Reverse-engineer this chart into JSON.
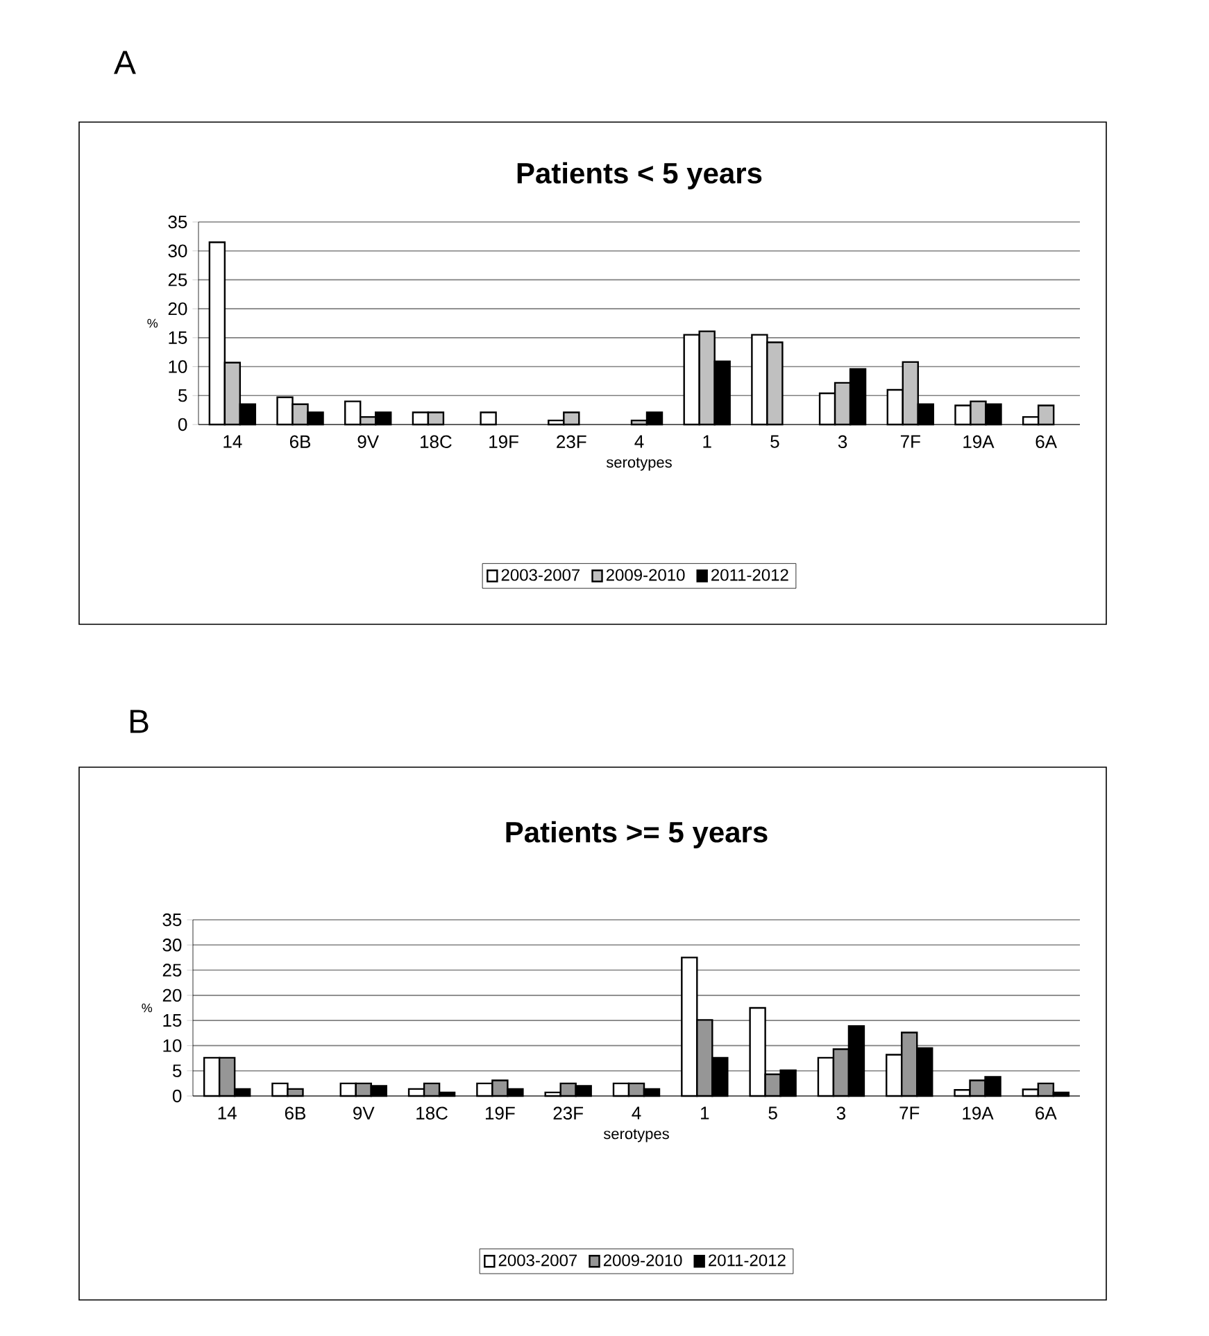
{
  "chart_data": [
    {
      "type": "bar",
      "title": "Patients < 5 years",
      "xlabel": "serotypes",
      "ylabel": "%",
      "annotations": [
        "A"
      ],
      "categories": [
        "14",
        "6B",
        "9V",
        "18C",
        "19F",
        "23F",
        "4",
        "1",
        "5",
        "3",
        "7F",
        "19A",
        "6A"
      ],
      "series": [
        {
          "name": "2003-2007",
          "color": "#ffffff",
          "values": [
            31.5,
            4.7,
            4.0,
            2.1,
            2.1,
            0.7,
            null,
            15.5,
            15.5,
            5.4,
            6.0,
            3.3,
            1.3
          ]
        },
        {
          "name": "2009-2010",
          "color": "#c0c0c0",
          "values": [
            10.7,
            3.5,
            1.3,
            2.1,
            null,
            2.1,
            0.7,
            16.1,
            14.2,
            7.2,
            10.8,
            4.0,
            3.3
          ]
        },
        {
          "name": "2011-2012",
          "color": "#000000",
          "values": [
            3.5,
            2.1,
            2.1,
            null,
            null,
            null,
            2.1,
            10.9,
            null,
            9.6,
            3.5,
            3.5,
            null
          ]
        }
      ],
      "ylim": [
        0,
        35
      ],
      "yticks": [
        0,
        5,
        10,
        15,
        20,
        25,
        30,
        35
      ],
      "grid": "y",
      "legend": "bottom"
    },
    {
      "type": "bar",
      "title": "Patients >= 5 years",
      "xlabel": "serotypes",
      "ylabel": "%",
      "annotations": [
        "B"
      ],
      "categories": [
        "14",
        "6B",
        "9V",
        "18C",
        "19F",
        "23F",
        "4",
        "1",
        "5",
        "3",
        "7F",
        "19A",
        "6A"
      ],
      "series": [
        {
          "name": "2003-2007",
          "color": "#ffffff",
          "values": [
            7.6,
            2.5,
            2.5,
            1.4,
            2.5,
            0.7,
            2.5,
            27.5,
            17.5,
            7.6,
            8.2,
            1.2,
            1.3
          ]
        },
        {
          "name": "2009-2010",
          "color": "#969696",
          "values": [
            7.6,
            1.4,
            2.5,
            2.5,
            3.1,
            2.5,
            2.5,
            15.1,
            4.3,
            9.3,
            12.6,
            3.1,
            2.5
          ]
        },
        {
          "name": "2011-2012",
          "color": "#000000",
          "values": [
            1.4,
            null,
            2.0,
            0.7,
            1.4,
            2.0,
            1.4,
            7.6,
            5.1,
            13.9,
            9.5,
            3.8,
            0.7
          ]
        }
      ],
      "ylim": [
        0,
        35
      ],
      "yticks": [
        0,
        5,
        10,
        15,
        20,
        25,
        30,
        35
      ],
      "grid": "y",
      "legend": "bottom"
    }
  ]
}
